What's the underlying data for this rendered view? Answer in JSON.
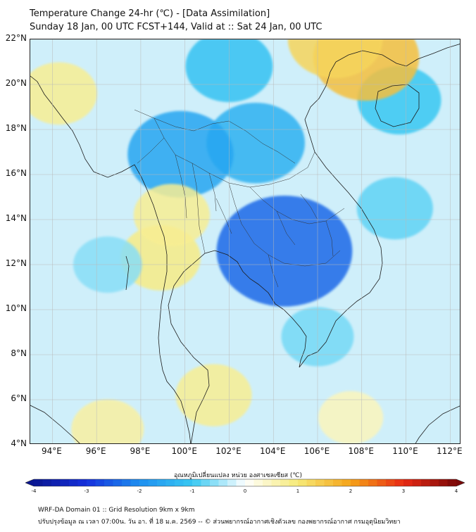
{
  "header": {
    "title_line1": "Temperature Change 24-hr (℃) - [Data Assimilation]",
    "title_line2": "Sunday 18 Jan, 00 UTC FCST+144, Valid at :: Sat 24 Jan, 00 UTC"
  },
  "map": {
    "lat_range": [
      4,
      22
    ],
    "lon_range": [
      93,
      112.5
    ],
    "lat_labels": [
      "22°N",
      "20°N",
      "18°N",
      "16°N",
      "14°N",
      "12°N",
      "10°N",
      "8°N",
      "6°N",
      "4°N"
    ],
    "lon_labels": [
      "94°E",
      "96°E",
      "98°E",
      "100°E",
      "102°E",
      "104°E",
      "106°E",
      "108°E",
      "110°E",
      "112°E"
    ],
    "field_regions": [
      {
        "name": "cooling-core-mainland",
        "lon": 103.2,
        "lat": 17.4,
        "value": -1.4
      },
      {
        "name": "cooling-tonle-sap",
        "lon": 104.5,
        "lat": 12.6,
        "value": -2.4
      },
      {
        "name": "cooling-northern-thailand",
        "lon": 99.8,
        "lat": 16.9,
        "value": -1.6
      },
      {
        "name": "cooling-yunnan",
        "lon": 102.0,
        "lat": 20.8,
        "value": -1.1
      },
      {
        "name": "cooling-hainan",
        "lon": 109.7,
        "lat": 19.3,
        "value": -1.0
      },
      {
        "name": "warming-gulf-tonkin",
        "lon": 108.2,
        "lat": 21.2,
        "value": 1.6
      },
      {
        "name": "warming-guangxi",
        "lon": 106.8,
        "lat": 22.0,
        "value": 1.3
      },
      {
        "name": "warming-tenasserim",
        "lon": 98.9,
        "lat": 12.3,
        "value": 0.9
      },
      {
        "name": "warming-west-thailand",
        "lon": 99.4,
        "lat": 14.2,
        "value": 0.8
      },
      {
        "name": "warming-andaman-nw",
        "lon": 94.3,
        "lat": 19.6,
        "value": 0.8
      },
      {
        "name": "warming-south-peninsula",
        "lon": 101.3,
        "lat": 6.2,
        "value": 0.8
      },
      {
        "name": "warming-south-sea",
        "lon": 96.5,
        "lat": 4.7,
        "value": 0.7
      },
      {
        "name": "warming-borneo-sea",
        "lon": 107.5,
        "lat": 5.2,
        "value": 0.5
      },
      {
        "name": "cooling-south-china-sea",
        "lon": 109.5,
        "lat": 14.5,
        "value": -0.8
      },
      {
        "name": "cooling-andaman",
        "lon": 96.5,
        "lat": 12.0,
        "value": -0.6
      },
      {
        "name": "cooling-central-sea",
        "lon": 106.0,
        "lat": 8.8,
        "value": -0.7
      }
    ]
  },
  "colorbar": {
    "title": "อุณหภูมิเปลี่ยนแปลง หน่วย องศาเซลเซียส (℃)",
    "min": -4,
    "max": 4,
    "ticks": [
      "-4",
      "-3",
      "-2",
      "-1",
      "0",
      "1",
      "2",
      "3",
      "4"
    ],
    "colors": {
      "n4": "#0a1690",
      "n3": "#1530dc",
      "n2": "#1e8ff0",
      "n1": "#38c8f2",
      "zero": "#ffffff",
      "p1": "#f6ea78",
      "p2": "#f5a318",
      "p3": "#e82a14",
      "p4": "#7a0808"
    }
  },
  "footer": {
    "line1": "WRF-DA Domain 01 :: Grid Resolution 9km x 9km",
    "line2": "ปรับปรุงข้อมูล ณ เวลา 07:00น. วัน อา. ที่ 18 ม.ค. 2569 -- © ส่วนพยากรณ์อากาศเชิงตัวเลข กองพยากรณ์อากาศ กรมอุตุนิยมวิทยา"
  }
}
